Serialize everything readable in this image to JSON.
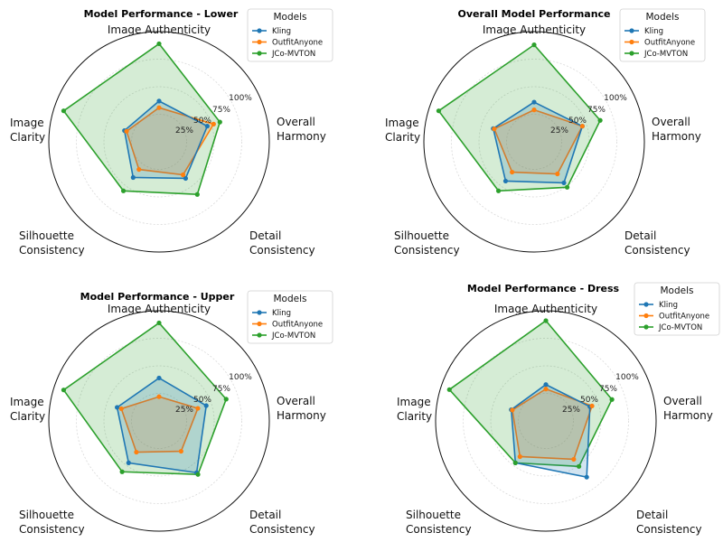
{
  "chart_data": [
    {
      "type": "radar",
      "title": "Model Performance - Lower",
      "axes": [
        "Image Authenticity",
        "Overall Harmony",
        "Detail Consistency",
        "Silhouette Consistency",
        "Image Clarity"
      ],
      "axis_labels": [
        [
          "Image Authenticity"
        ],
        [
          "Overall",
          "Harmony"
        ],
        [
          "Detail",
          "Consistency"
        ],
        [
          "Silhouette",
          "Consistency"
        ],
        [
          "Image",
          "Clarity"
        ]
      ],
      "ticks": [
        "25%",
        "50%",
        "75%",
        "100%"
      ],
      "rlim": [
        0,
        100
      ],
      "grid": true,
      "legend": {
        "title": "Models",
        "placement": "top-right"
      },
      "series": [
        {
          "name": "Kling",
          "color": "#1f77b4",
          "values": [
            37,
            46,
            41,
            40,
            33
          ]
        },
        {
          "name": "OutfitAnyone",
          "color": "#ff7f0e",
          "values": [
            31,
            52,
            37,
            31,
            31
          ]
        },
        {
          "name": "JCo-MVTON",
          "color": "#2ca02c",
          "values": [
            89,
            58,
            59,
            55,
            91
          ]
        }
      ]
    },
    {
      "type": "radar",
      "title": "Overall Model Performance",
      "axes": [
        "Image Authenticity",
        "Overall Harmony",
        "Detail Consistency",
        "Silhouette Consistency",
        "Image Clarity"
      ],
      "axis_labels": [
        [
          "Image Authenticity"
        ],
        [
          "Overall",
          "Harmony"
        ],
        [
          "Detail",
          "Consistency"
        ],
        [
          "Silhouette",
          "Consistency"
        ],
        [
          "Image",
          "Clarity"
        ]
      ],
      "ticks": [
        "25%",
        "50%",
        "75%",
        "100%"
      ],
      "rlim": [
        0,
        100
      ],
      "grid": true,
      "legend": {
        "title": "Models",
        "placement": "top-right"
      },
      "series": [
        {
          "name": "Kling",
          "color": "#1f77b4",
          "values": [
            36,
            46,
            46,
            44,
            39
          ]
        },
        {
          "name": "OutfitAnyone",
          "color": "#ff7f0e",
          "values": [
            29,
            46,
            36,
            34,
            38
          ]
        },
        {
          "name": "JCo-MVTON",
          "color": "#2ca02c",
          "values": [
            88,
            63,
            51,
            55,
            91
          ]
        }
      ]
    },
    {
      "type": "radar",
      "title": "Model Performance - Upper",
      "axes": [
        "Image Authenticity",
        "Overall Harmony",
        "Detail Consistency",
        "Silhouette Consistency",
        "Image Clarity"
      ],
      "axis_labels": [
        [
          "Image Authenticity"
        ],
        [
          "Overall",
          "Harmony"
        ],
        [
          "Detail",
          "Consistency"
        ],
        [
          "Silhouette",
          "Consistency"
        ],
        [
          "Image",
          "Clarity"
        ]
      ],
      "ticks": [
        "25%",
        "50%",
        "75%",
        "100%"
      ],
      "rlim": [
        0,
        100
      ],
      "grid": true,
      "legend": {
        "title": "Models",
        "placement": "top-right"
      },
      "series": [
        {
          "name": "Kling",
          "color": "#1f77b4",
          "values": [
            39,
            45,
            58,
            47,
            40
          ]
        },
        {
          "name": "OutfitAnyone",
          "color": "#ff7f0e",
          "values": [
            22,
            37,
            34,
            35,
            36
          ]
        },
        {
          "name": "JCo-MVTON",
          "color": "#2ca02c",
          "values": [
            89,
            64,
            60,
            57,
            91
          ]
        }
      ]
    },
    {
      "type": "radar",
      "title": "Model Performance - Dress",
      "axes": [
        "Image Authenticity",
        "Overall Harmony",
        "Detail Consistency",
        "Silhouette Consistency",
        "Image Clarity"
      ],
      "axis_labels": [
        [
          "Image Authenticity"
        ],
        [
          "Overall",
          "Harmony"
        ],
        [
          "Detail",
          "Consistency"
        ],
        [
          "Silhouette",
          "Consistency"
        ],
        [
          "Image",
          "Clarity"
        ]
      ],
      "ticks": [
        "25%",
        "50%",
        "75%",
        "100%"
      ],
      "rlim": [
        0,
        100
      ],
      "grid": true,
      "legend": {
        "title": "Models",
        "placement": "top-right"
      },
      "series": [
        {
          "name": "Kling",
          "color": "#1f77b4",
          "values": [
            33,
            42,
            63,
            47,
            33
          ]
        },
        {
          "name": "OutfitAnyone",
          "color": "#ff7f0e",
          "values": [
            29,
            44,
            43,
            40,
            32
          ]
        },
        {
          "name": "JCo-MVTON",
          "color": "#2ca02c",
          "values": [
            91,
            63,
            51,
            47,
            92
          ]
        }
      ]
    }
  ]
}
